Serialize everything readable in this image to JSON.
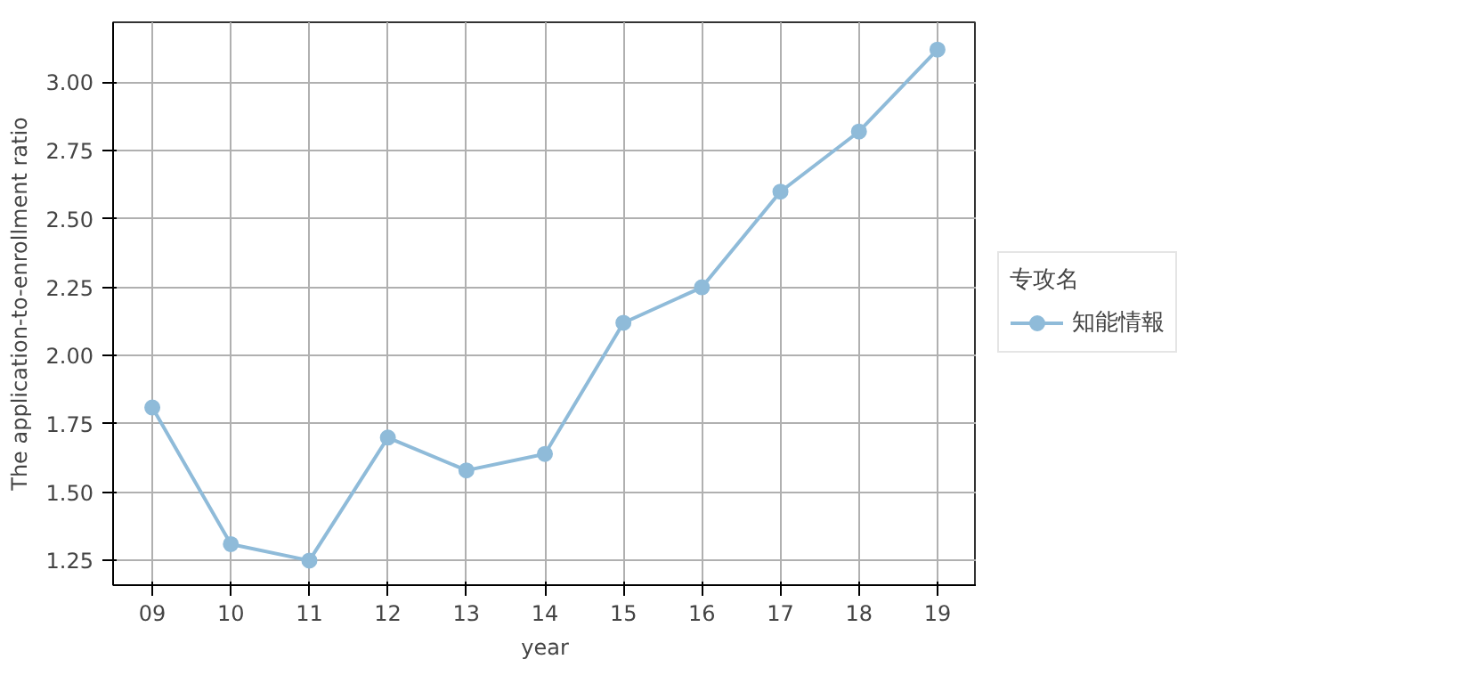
{
  "chart_data": {
    "type": "line",
    "xlabel": "year",
    "ylabel": "The application-to-enrollment ratio",
    "legend_title": "专攻名",
    "categories": [
      "09",
      "10",
      "11",
      "12",
      "13",
      "14",
      "15",
      "16",
      "17",
      "18",
      "19"
    ],
    "series": [
      {
        "name": "知能情報",
        "color": "#8fbbd9",
        "values": [
          1.81,
          1.31,
          1.25,
          1.7,
          1.58,
          1.64,
          2.12,
          2.25,
          2.6,
          2.82,
          3.12
        ]
      }
    ],
    "ylim": [
      1.16,
      3.22
    ],
    "yticks": [
      1.25,
      {
        "value": 1.5,
        "label": "1.50"
      },
      1.75,
      {
        "value": 2.0,
        "label": "2.00"
      },
      2.25,
      {
        "value": 2.5,
        "label": "2.50"
      },
      2.75,
      {
        "value": 3.0,
        "label": "3.00"
      }
    ],
    "grid": true,
    "legend": "right",
    "marker": "circle",
    "line_style": "solid"
  }
}
